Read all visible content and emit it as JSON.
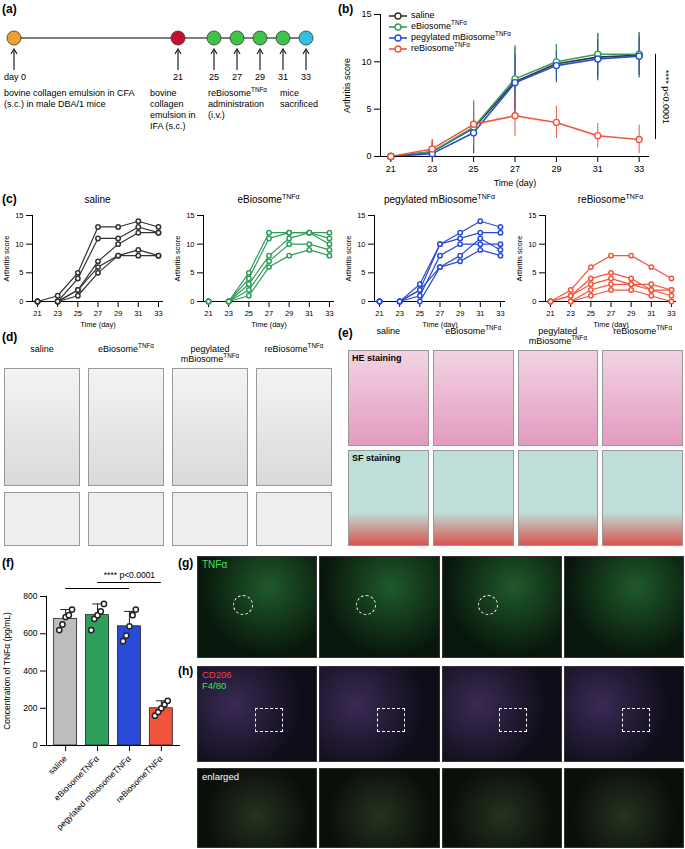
{
  "panel_labels": [
    "(a)",
    "(b)",
    "(c)",
    "(d)",
    "(e)",
    "(f)",
    "(g)",
    "(h)"
  ],
  "timeline": {
    "events": [
      {
        "day": "day 0",
        "text": "bovine collagen emulsion in CFA (s.c.) in male DBA/1 mice",
        "color": "#f0a030"
      },
      {
        "day": "21",
        "text": "bovine collagen emulsion in IFA (s.c.)",
        "color": "#c8102e"
      },
      {
        "day": "25",
        "color": "#3fc24a"
      },
      {
        "day": "27",
        "color": "#3fc24a"
      },
      {
        "day": "29",
        "color": "#3fc24a"
      },
      {
        "day": "31",
        "color": "#3fc24a"
      },
      {
        "day": "33",
        "text": "mice sacrificed",
        "color": "#2fc2e0"
      }
    ],
    "dose_text": "reBiosomeTNFα administration (i.v.)"
  },
  "chart_data": [
    {
      "type": "line",
      "x_label": "Time (day)",
      "y_label": "Arthritis score",
      "x": [
        21,
        23,
        25,
        27,
        29,
        31,
        33
      ],
      "xlim": [
        20.5,
        33.5
      ],
      "xticks": [
        21,
        23,
        25,
        27,
        29,
        31,
        33
      ],
      "ylim": [
        0,
        15
      ],
      "yticks": [
        0,
        5,
        10,
        15
      ],
      "legend": "upper left",
      "marker": "circle",
      "annotation": "**** p<0.0001",
      "series": [
        {
          "name": "saline",
          "color": "#333333",
          "values": [
            0,
            0.5,
            3,
            7.9,
            9.8,
            10.5,
            10.7
          ],
          "errors": [
            0,
            1.2,
            2.6,
            3.8,
            2.0,
            2.5,
            2.4
          ]
        },
        {
          "name": "eBiosomeTNFα",
          "color": "#2e9e5b",
          "values": [
            0,
            0.5,
            3.1,
            8.2,
            10,
            10.8,
            10.8
          ],
          "errors": [
            0,
            1.0,
            2.8,
            3.2,
            1.8,
            2.2,
            2.2
          ]
        },
        {
          "name": "pegylated mBiosomeTNFα",
          "color": "#2a4bd7",
          "values": [
            0,
            0.3,
            2.5,
            7.8,
            9.6,
            10.3,
            10.6
          ],
          "errors": [
            0,
            0.8,
            2.2,
            3.0,
            1.5,
            2.0,
            2.0
          ]
        },
        {
          "name": "reBiosomeTNFα",
          "color": "#f2553d",
          "values": [
            0,
            0.8,
            3.4,
            4.3,
            3.6,
            2.2,
            1.8
          ],
          "errors": [
            0,
            1.0,
            2.4,
            2.2,
            1.7,
            1.3,
            1.5
          ]
        }
      ]
    },
    {
      "type": "line",
      "title": "saline",
      "x_label": "Time (day)",
      "y_label": "Arthritis score",
      "x": [
        21,
        23,
        25,
        27,
        29,
        31,
        33
      ],
      "xlim": [
        20.5,
        33.5
      ],
      "xticks": [
        21,
        23,
        25,
        27,
        29,
        31,
        33
      ],
      "ylim": [
        0,
        15
      ],
      "yticks": [
        0,
        5,
        10,
        15
      ],
      "color": "#333333",
      "marker": "circle",
      "series": [
        {
          "values": [
            0,
            1,
            5,
            13,
            13,
            14,
            13
          ]
        },
        {
          "values": [
            0,
            0,
            4,
            11,
            11,
            13,
            12
          ]
        },
        {
          "values": [
            0,
            0,
            2,
            7,
            10,
            12,
            12
          ]
        },
        {
          "values": [
            0,
            0,
            2,
            6,
            8,
            8,
            8
          ]
        },
        {
          "values": [
            0,
            0,
            1,
            5,
            8,
            9,
            8
          ]
        }
      ]
    },
    {
      "type": "line",
      "title": "eBiosomeTNFα",
      "x_label": "Time (day)",
      "y_label": "Arthritis score",
      "x": [
        21,
        23,
        25,
        27,
        29,
        31,
        33
      ],
      "xlim": [
        20.5,
        33.5
      ],
      "xticks": [
        21,
        23,
        25,
        27,
        29,
        31,
        33
      ],
      "ylim": [
        0,
        15
      ],
      "yticks": [
        0,
        5,
        10,
        15
      ],
      "color": "#2e9e5b",
      "marker": "circle",
      "series": [
        {
          "values": [
            0,
            0,
            5,
            12,
            12,
            12,
            12
          ]
        },
        {
          "values": [
            0,
            0,
            4,
            11,
            12,
            12,
            11
          ]
        },
        {
          "values": [
            0,
            0,
            3,
            8,
            11,
            12,
            10
          ]
        },
        {
          "values": [
            0,
            0,
            2,
            7,
            10,
            10,
            9
          ]
        },
        {
          "values": [
            0,
            0,
            1,
            6,
            8,
            9,
            8
          ]
        }
      ]
    },
    {
      "type": "line",
      "title": "pegylated mBiosomeTNFα",
      "x_label": "Time (day)",
      "y_label": "Arthritis score",
      "x": [
        21,
        23,
        25,
        27,
        29,
        31,
        33
      ],
      "xlim": [
        20.5,
        33.5
      ],
      "xticks": [
        21,
        23,
        25,
        27,
        29,
        31,
        33
      ],
      "ylim": [
        0,
        15
      ],
      "yticks": [
        0,
        5,
        10,
        15
      ],
      "color": "#2a4bd7",
      "marker": "circle",
      "series": [
        {
          "values": [
            0,
            0,
            3,
            10,
            12,
            14,
            13
          ]
        },
        {
          "values": [
            0,
            0,
            2,
            10,
            11,
            12,
            12
          ]
        },
        {
          "values": [
            0,
            0,
            1,
            8,
            10,
            10,
            10
          ]
        },
        {
          "values": [
            0,
            0,
            2,
            6,
            8,
            11,
            9
          ]
        },
        {
          "values": [
            0,
            0,
            0,
            6,
            7,
            9,
            8
          ]
        }
      ]
    },
    {
      "type": "line",
      "title": "reBiosomeTNFα",
      "x_label": "Time (day)",
      "y_label": "Arthritis score",
      "x": [
        21,
        23,
        25,
        27,
        29,
        31,
        33
      ],
      "xlim": [
        20.5,
        33.5
      ],
      "xticks": [
        21,
        23,
        25,
        27,
        29,
        31,
        33
      ],
      "ylim": [
        0,
        15
      ],
      "yticks": [
        0,
        5,
        10,
        15
      ],
      "color": "#f2553d",
      "marker": "circle",
      "series": [
        {
          "values": [
            0,
            2,
            6,
            8,
            8,
            6,
            4
          ]
        },
        {
          "values": [
            0,
            1,
            4,
            5,
            4,
            2,
            2
          ]
        },
        {
          "values": [
            0,
            1,
            3,
            4,
            3,
            2,
            1
          ]
        },
        {
          "values": [
            0,
            0,
            2,
            3,
            3,
            3,
            2
          ]
        },
        {
          "values": [
            0,
            0,
            1,
            2,
            2,
            1,
            0
          ]
        }
      ]
    },
    {
      "type": "bar",
      "y_label": "Concentration of TNFα (pg/mL)",
      "categories": [
        "saline",
        "eBiosomeTNFα",
        "pegylated mBiosomeTNFα",
        "reBiosomeTNFα"
      ],
      "values": [
        680,
        700,
        640,
        200
      ],
      "errors": [
        50,
        60,
        80,
        40
      ],
      "points": [
        [
          620,
          650,
          690,
          700,
          730
        ],
        [
          620,
          680,
          700,
          720,
          760
        ],
        [
          560,
          590,
          640,
          700,
          730
        ],
        [
          160,
          180,
          200,
          220,
          240
        ]
      ],
      "colors": [
        "#bdbdbd",
        "#2e9e5b",
        "#2a4bd7",
        "#f2553d"
      ],
      "ylim": [
        0,
        800
      ],
      "yticks": [
        0,
        200,
        400,
        600,
        800
      ],
      "annotation": "**** p<0.0001"
    }
  ],
  "image_panels": {
    "d": {
      "columns": [
        "saline",
        "eBiosomeTNFα",
        "pegylated mBiosomeTNFα",
        "reBiosomeTNFα"
      ]
    },
    "e": {
      "columns": [
        "saline",
        "eBiosomeTNFα",
        "pegylated mBiosomeTNFα",
        "reBiosomeTNFα"
      ],
      "rows": [
        "HE staining",
        "SF staining"
      ]
    },
    "g": {
      "stain": "TNFα"
    },
    "h": {
      "stains": [
        "CD206",
        "F4/80"
      ],
      "inset": "enlarged"
    }
  }
}
